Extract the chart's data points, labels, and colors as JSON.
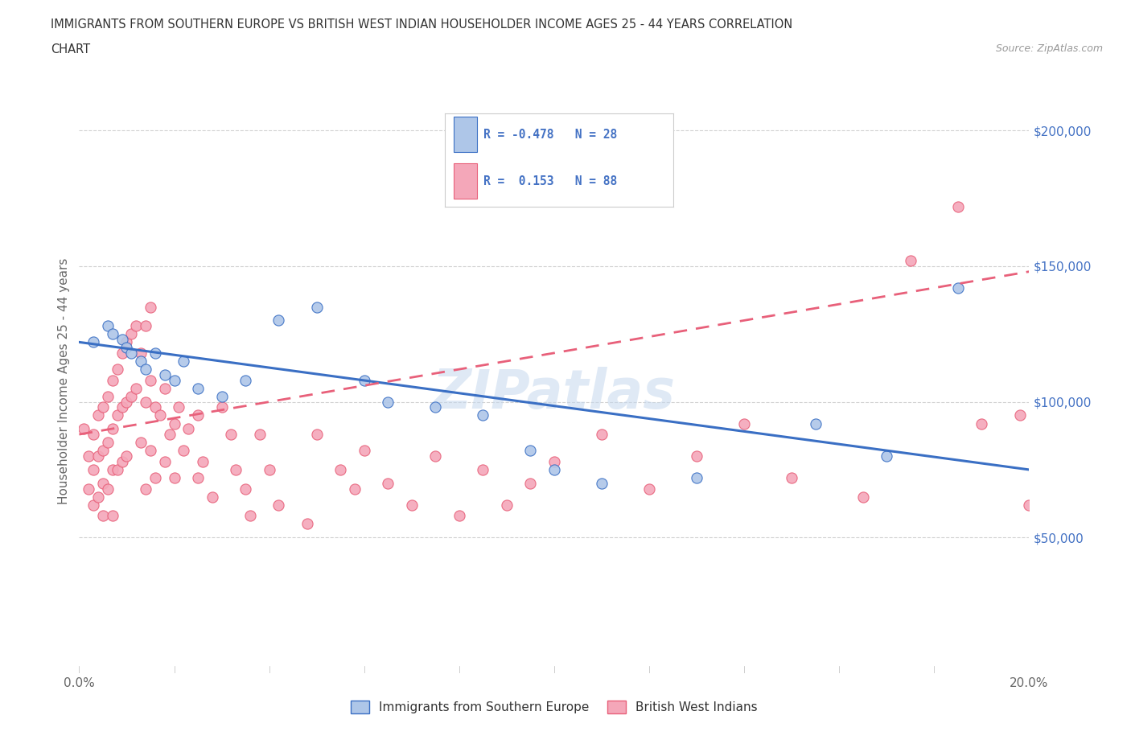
{
  "title_line1": "IMMIGRANTS FROM SOUTHERN EUROPE VS BRITISH WEST INDIAN HOUSEHOLDER INCOME AGES 25 - 44 YEARS CORRELATION",
  "title_line2": "CHART",
  "source_text": "Source: ZipAtlas.com",
  "ylabel": "Householder Income Ages 25 - 44 years",
  "xlim": [
    0.0,
    0.2
  ],
  "ylim": [
    0,
    215000
  ],
  "ytick_values": [
    50000,
    100000,
    150000,
    200000
  ],
  "ytick_labels": [
    "$50,000",
    "$100,000",
    "$150,000",
    "$200,000"
  ],
  "blue_R": -0.478,
  "blue_N": 28,
  "pink_R": 0.153,
  "pink_N": 88,
  "blue_color": "#aec6e8",
  "pink_color": "#f4a7b9",
  "blue_line_color": "#3a6fc4",
  "pink_line_color": "#e8607a",
  "legend_label_blue": "Immigrants from Southern Europe",
  "legend_label_pink": "British West Indians",
  "watermark": "ZIPatlas",
  "blue_scatter_x": [
    0.003,
    0.006,
    0.007,
    0.009,
    0.01,
    0.011,
    0.013,
    0.014,
    0.016,
    0.018,
    0.02,
    0.022,
    0.025,
    0.03,
    0.035,
    0.042,
    0.05,
    0.06,
    0.065,
    0.075,
    0.085,
    0.095,
    0.1,
    0.11,
    0.13,
    0.155,
    0.17,
    0.185
  ],
  "blue_scatter_y": [
    122000,
    128000,
    125000,
    123000,
    120000,
    118000,
    115000,
    112000,
    118000,
    110000,
    108000,
    115000,
    105000,
    102000,
    108000,
    130000,
    135000,
    108000,
    100000,
    98000,
    95000,
    82000,
    75000,
    70000,
    72000,
    92000,
    80000,
    142000
  ],
  "pink_scatter_x": [
    0.001,
    0.002,
    0.002,
    0.003,
    0.003,
    0.003,
    0.004,
    0.004,
    0.004,
    0.005,
    0.005,
    0.005,
    0.005,
    0.006,
    0.006,
    0.006,
    0.007,
    0.007,
    0.007,
    0.007,
    0.008,
    0.008,
    0.008,
    0.009,
    0.009,
    0.009,
    0.01,
    0.01,
    0.01,
    0.011,
    0.011,
    0.012,
    0.012,
    0.013,
    0.013,
    0.014,
    0.014,
    0.014,
    0.015,
    0.015,
    0.015,
    0.016,
    0.016,
    0.017,
    0.018,
    0.018,
    0.019,
    0.02,
    0.02,
    0.021,
    0.022,
    0.023,
    0.025,
    0.025,
    0.026,
    0.028,
    0.03,
    0.032,
    0.033,
    0.035,
    0.036,
    0.038,
    0.04,
    0.042,
    0.048,
    0.05,
    0.055,
    0.058,
    0.06,
    0.065,
    0.07,
    0.075,
    0.08,
    0.085,
    0.09,
    0.095,
    0.1,
    0.11,
    0.12,
    0.13,
    0.14,
    0.15,
    0.165,
    0.175,
    0.185,
    0.19,
    0.198,
    0.2
  ],
  "pink_scatter_y": [
    90000,
    80000,
    68000,
    88000,
    75000,
    62000,
    95000,
    80000,
    65000,
    98000,
    82000,
    70000,
    58000,
    102000,
    85000,
    68000,
    108000,
    90000,
    75000,
    58000,
    112000,
    95000,
    75000,
    118000,
    98000,
    78000,
    122000,
    100000,
    80000,
    125000,
    102000,
    128000,
    105000,
    118000,
    85000,
    128000,
    100000,
    68000,
    135000,
    108000,
    82000,
    98000,
    72000,
    95000,
    105000,
    78000,
    88000,
    92000,
    72000,
    98000,
    82000,
    90000,
    95000,
    72000,
    78000,
    65000,
    98000,
    88000,
    75000,
    68000,
    58000,
    88000,
    75000,
    62000,
    55000,
    88000,
    75000,
    68000,
    82000,
    70000,
    62000,
    80000,
    58000,
    75000,
    62000,
    70000,
    78000,
    88000,
    68000,
    80000,
    92000,
    72000,
    65000,
    152000,
    172000,
    92000,
    95000,
    62000
  ],
  "background_color": "#ffffff",
  "grid_color": "#cccccc",
  "title_color": "#333333"
}
